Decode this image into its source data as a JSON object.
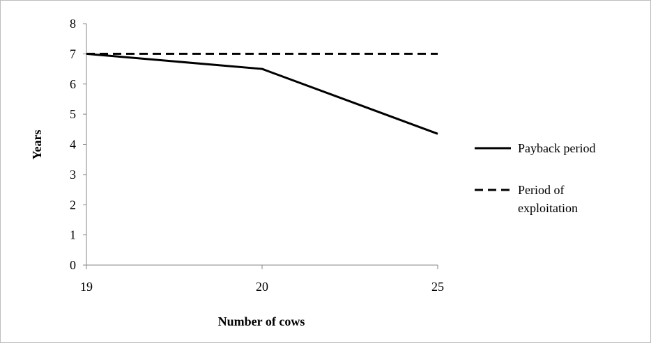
{
  "chart_data": {
    "type": "line",
    "categories": [
      "19",
      "20",
      "25"
    ],
    "series": [
      {
        "name": "Payback period",
        "values": [
          7.0,
          6.5,
          4.35
        ],
        "style": "solid",
        "color": "#000000"
      },
      {
        "name": "Period of exploitation",
        "values": [
          7,
          7,
          7
        ],
        "style": "dashed",
        "color": "#000000"
      }
    ],
    "xlabel": "Number of cows",
    "ylabel": "Years",
    "ylim": [
      0,
      8
    ],
    "yticks": [
      0,
      1,
      2,
      3,
      4,
      5,
      6,
      7,
      8
    ],
    "grid": false,
    "legend": {
      "position": "right",
      "entries": [
        {
          "lines": [
            "Payback period"
          ]
        },
        {
          "lines": [
            "Period of",
            "exploitation"
          ]
        }
      ]
    }
  }
}
